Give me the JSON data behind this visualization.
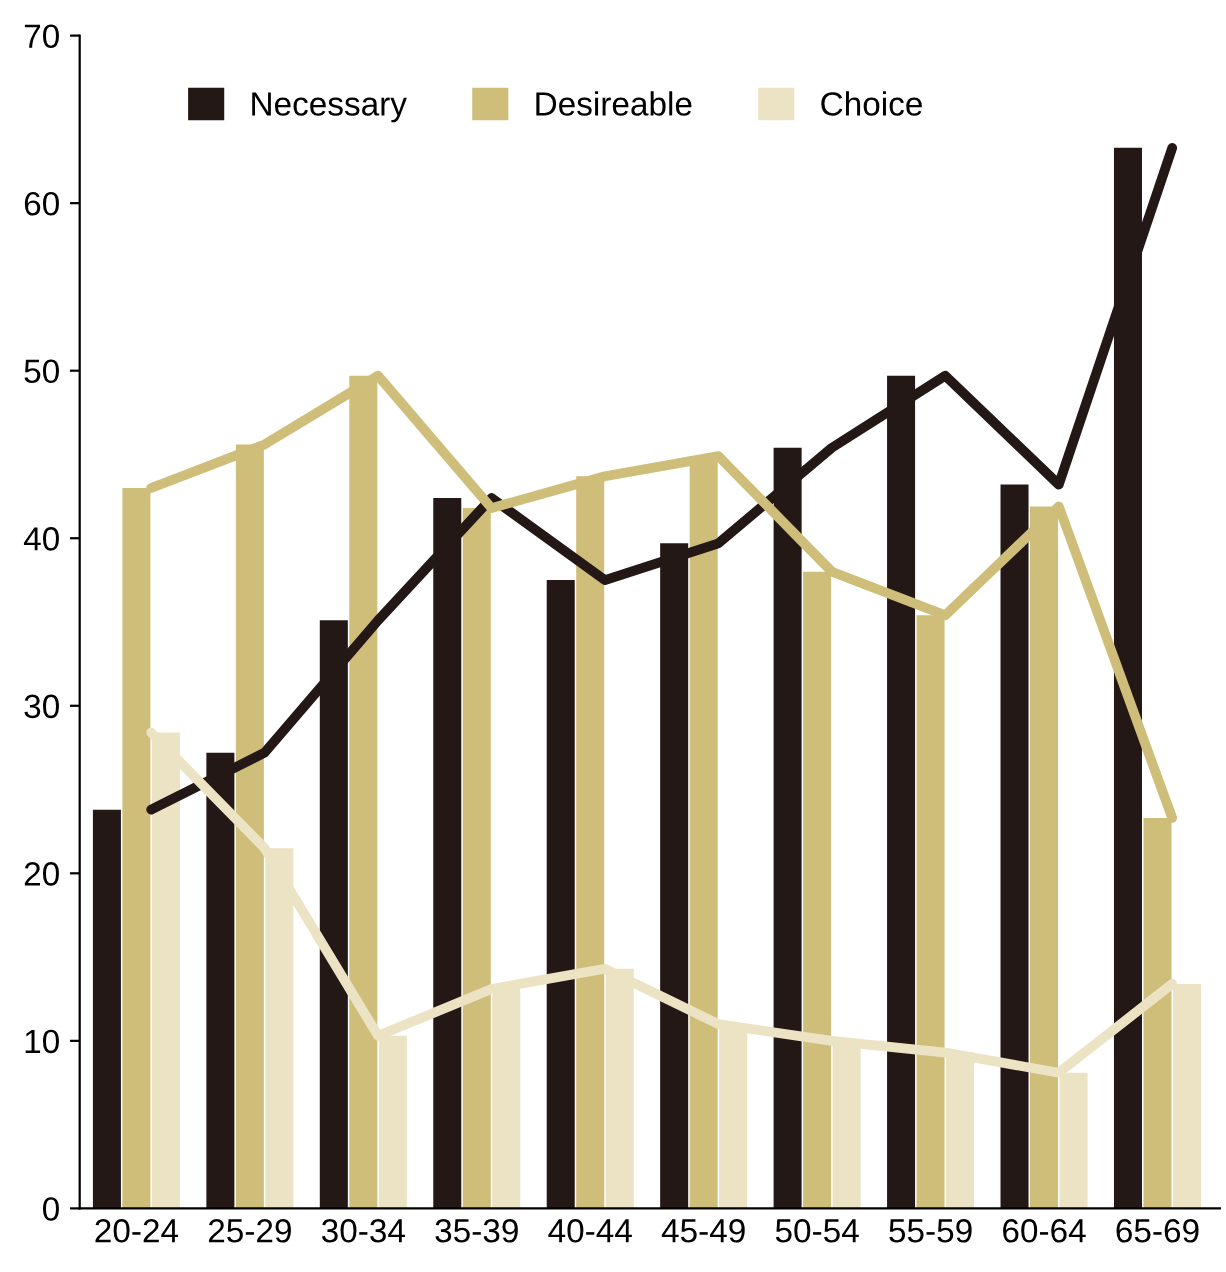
{
  "chart_data": {
    "type": "bar",
    "categories": [
      "20-24",
      "25-29",
      "30-34",
      "35-39",
      "40-44",
      "45-49",
      "50-54",
      "55-59",
      "60-64",
      "65-69"
    ],
    "series": [
      {
        "name": "Necessary",
        "color": "#231815",
        "values": [
          23.8,
          27.2,
          35.1,
          42.4,
          37.5,
          39.7,
          45.4,
          49.7,
          43.2,
          63.3
        ]
      },
      {
        "name": "Desireable",
        "color": "#cfbd7a",
        "values": [
          43.0,
          45.6,
          49.7,
          41.8,
          43.7,
          44.9,
          38.0,
          35.4,
          41.9,
          23.3
        ]
      },
      {
        "name": "Choice",
        "color": "#ebe3c3",
        "values": [
          28.4,
          21.5,
          10.3,
          13.1,
          14.3,
          11.0,
          10.0,
          9.3,
          8.1,
          13.4
        ]
      },
      {
        "type": "line",
        "color": "#231815",
        "values": [
          23.8,
          27.2,
          35.1,
          42.4,
          37.5,
          39.7,
          45.4,
          49.7,
          43.2,
          63.3
        ]
      },
      {
        "type": "line",
        "color": "#cfbd7a",
        "values": [
          43.0,
          45.6,
          49.7,
          41.8,
          43.7,
          44.9,
          38.0,
          35.4,
          41.9,
          23.3
        ]
      },
      {
        "type": "line",
        "color": "#ebe3c3",
        "values": [
          28.4,
          21.5,
          10.3,
          13.1,
          14.3,
          11.0,
          10.0,
          9.3,
          8.1,
          13.4
        ]
      }
    ],
    "ylim": [
      0,
      70
    ],
    "yticks": [
      0,
      10,
      20,
      30,
      40,
      50,
      60,
      70
    ],
    "grid": false,
    "legend": "top left"
  }
}
